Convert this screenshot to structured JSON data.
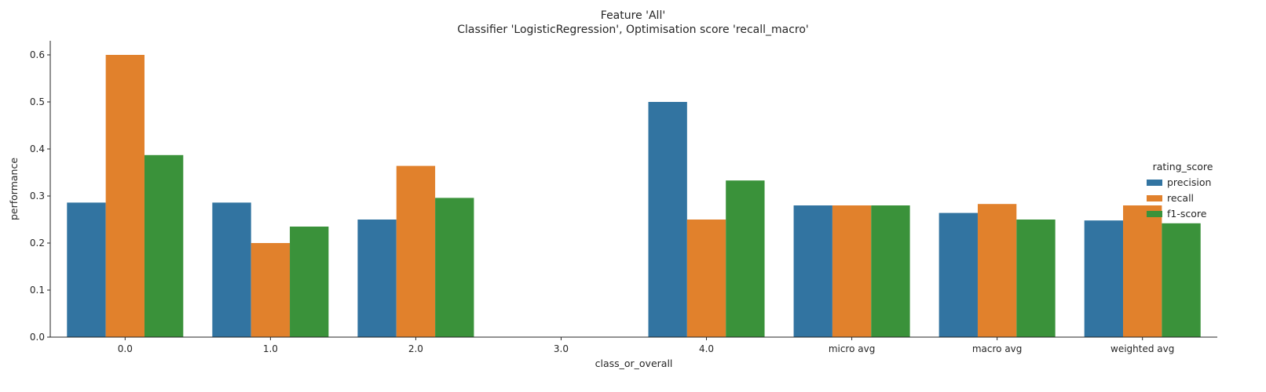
{
  "title_line1": "Feature 'All'",
  "title_line2": "Classifier 'LogisticRegression', Optimisation score 'recall_macro'",
  "legend": {
    "title": "rating_score",
    "placement": "right"
  },
  "chart_data": {
    "type": "bar",
    "xlabel": "class_or_overall",
    "ylabel": "performance",
    "ylim": [
      0,
      0.63
    ],
    "yticks": [
      0.0,
      0.1,
      0.2,
      0.3,
      0.4,
      0.5,
      0.6
    ],
    "ytick_labels": [
      "0.0",
      "0.1",
      "0.2",
      "0.3",
      "0.4",
      "0.5",
      "0.6"
    ],
    "grid": false,
    "categories": [
      "0.0",
      "1.0",
      "2.0",
      "3.0",
      "4.0",
      "micro avg",
      "macro avg",
      "weighted avg"
    ],
    "series": [
      {
        "name": "precision",
        "color": "#3274a1",
        "values": [
          0.286,
          0.286,
          0.25,
          0.0,
          0.5,
          0.28,
          0.264,
          0.248
        ]
      },
      {
        "name": "recall",
        "color": "#e1812c",
        "values": [
          0.6,
          0.2,
          0.364,
          0.0,
          0.25,
          0.28,
          0.283,
          0.28
        ]
      },
      {
        "name": "f1-score",
        "color": "#3a923a",
        "values": [
          0.387,
          0.235,
          0.296,
          0.0,
          0.333,
          0.28,
          0.25,
          0.242
        ]
      }
    ]
  }
}
